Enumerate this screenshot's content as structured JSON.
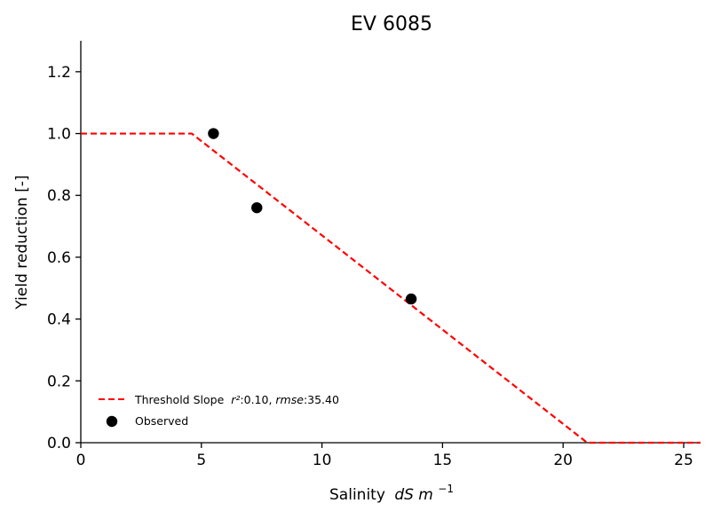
{
  "chart_data": {
    "type": "line",
    "title": "EV 6085",
    "xlabel": "Salinity",
    "xlabel_italic": "dS m",
    "xlabel_exponent": "−1",
    "ylabel": "Yield reduction [-]",
    "xlim": [
      0,
      25.7
    ],
    "ylim": [
      0,
      1.3
    ],
    "x_ticks": [
      0,
      5,
      10,
      15,
      20,
      25
    ],
    "y_ticks": [
      0.0,
      0.2,
      0.4,
      0.6,
      0.8,
      1.0,
      1.2
    ],
    "x_tick_labels": [
      "0",
      "5",
      "10",
      "15",
      "20",
      "25"
    ],
    "y_tick_labels": [
      "0.0",
      "0.2",
      "0.4",
      "0.6",
      "0.8",
      "1.0",
      "1.2"
    ],
    "grid": false,
    "legend_position": "lower-left",
    "series": [
      {
        "name": "Threshold Slope",
        "style": "dashed-line",
        "color": "#ff0000",
        "x": [
          0,
          4.6,
          21.0,
          25.7
        ],
        "y": [
          1.0,
          1.0,
          0.0,
          0.0
        ]
      },
      {
        "name": "Observed",
        "style": "scatter",
        "color": "#000000",
        "x": [
          5.5,
          7.3,
          13.7
        ],
        "y": [
          1.0,
          0.76,
          0.465
        ]
      }
    ],
    "legend": {
      "fit_label": "Threshold Slope",
      "r2_symbol": "r²",
      "r2_value": ":0.10, ",
      "rmse_symbol": "rmse",
      "rmse_value": ":35.40",
      "observed_label": "Observed"
    }
  }
}
